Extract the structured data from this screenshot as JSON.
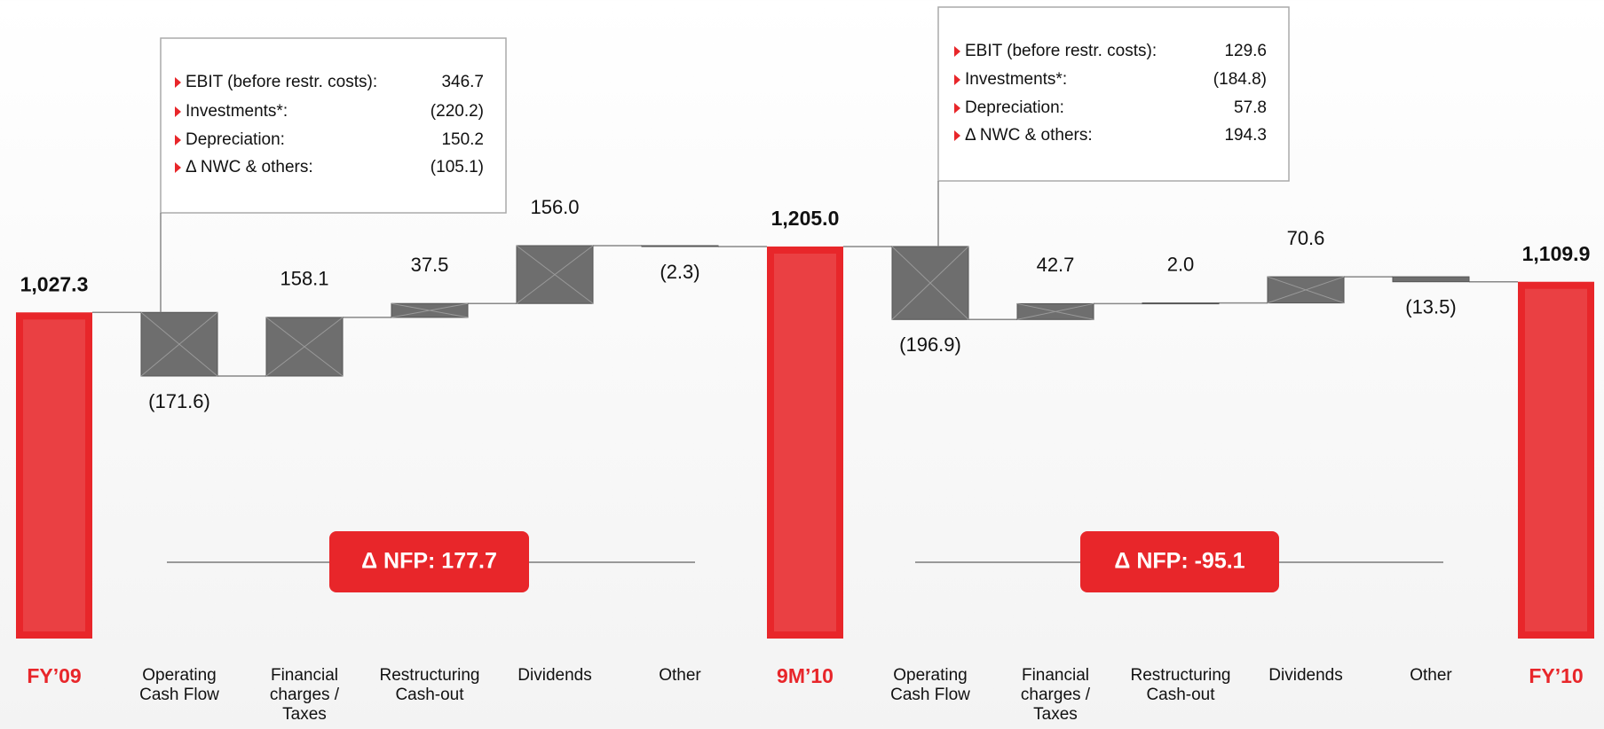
{
  "chart_data": {
    "type": "waterfall",
    "categories": [
      "FY’09",
      "Operating Cash Flow",
      "Financial charges / Taxes",
      "Restructuring Cash-out",
      "Dividends",
      "Other",
      "9M’10",
      "Operating Cash Flow",
      "Financial charges / Taxes",
      "Restructuring Cash-out",
      "Dividends",
      "Other",
      "FY’10"
    ],
    "values": [
      1027.3,
      -171.6,
      158.1,
      37.5,
      156.0,
      -2.3,
      1205.0,
      -196.9,
      42.7,
      2.0,
      70.6,
      -13.5,
      1109.9
    ],
    "value_labels": [
      "1,027.3",
      "(171.6)",
      "158.1",
      "37.5",
      "156.0",
      "(2.3)",
      "1,205.0",
      "(196.9)",
      "42.7",
      "2.0",
      "70.6",
      "(13.5)",
      "1,109.9"
    ],
    "total_color": "#e8262a",
    "delta_color": "#6e6e6e",
    "annotations": [
      "Δ NFP: 177.7",
      "Δ NFP: -95.1"
    ],
    "notes": [
      [
        {
          "label": "EBIT (before restr. costs):",
          "value": "346.7"
        },
        {
          "label": "Investments*:",
          "value": "(220.2)"
        },
        {
          "label": "Depreciation:",
          "value": "150.2"
        },
        {
          "label": "Δ NWC & others:",
          "value": "(105.1)"
        }
      ],
      [
        {
          "label": "EBIT (before restr. costs):",
          "value": "129.6"
        },
        {
          "label": "Investments*:",
          "value": "(184.8)"
        },
        {
          "label": "Depreciation:",
          "value": "57.8"
        },
        {
          "label": "Δ NWC & others:",
          "value": "194.3"
        }
      ]
    ]
  }
}
